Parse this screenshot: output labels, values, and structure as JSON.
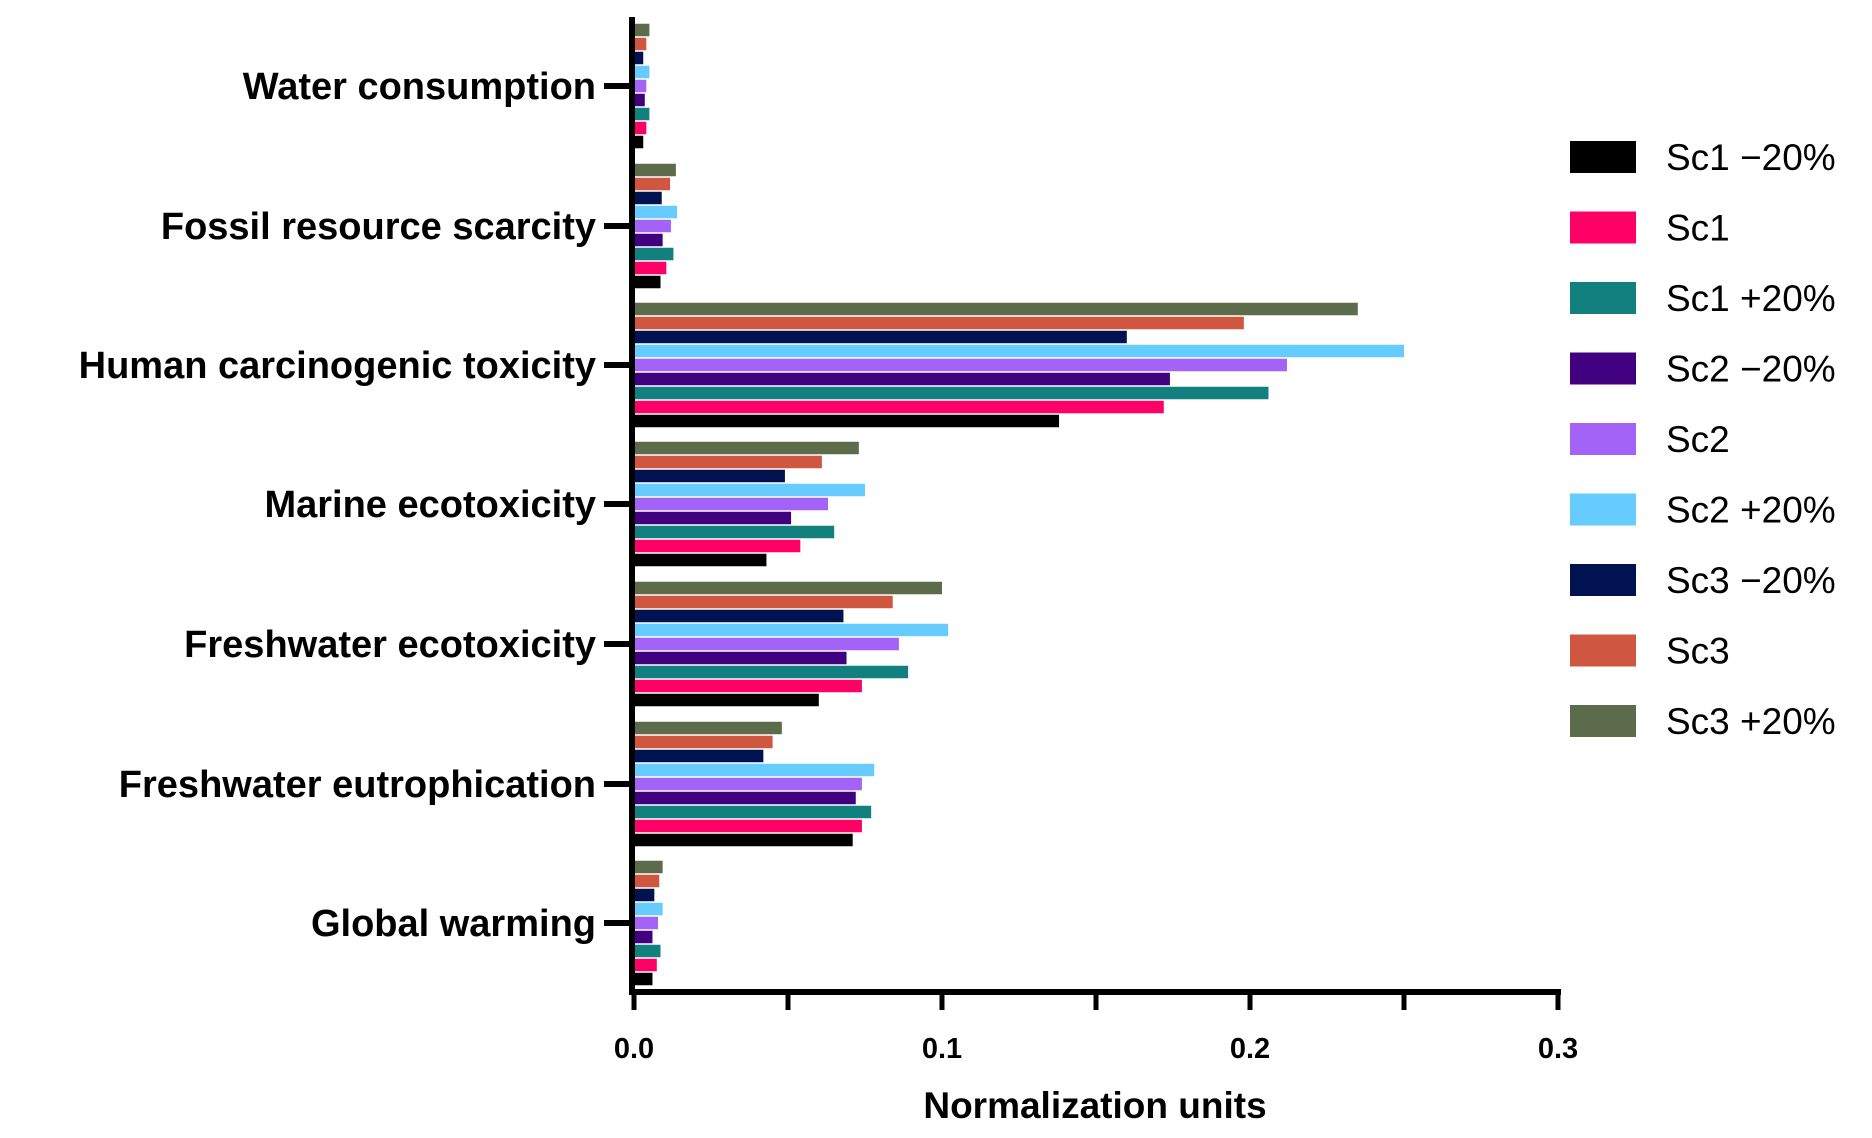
{
  "chart_data": {
    "type": "bar",
    "orientation": "horizontal",
    "title": "",
    "xlabel": "Normalization units",
    "ylabel": "",
    "xlim": [
      0,
      0.3
    ],
    "x_ticks": [
      "0.0",
      "0.1",
      "0.2",
      "0.3"
    ],
    "x_tick_values": [
      0,
      0.1,
      0.2,
      0.3
    ],
    "grid": false,
    "legend_position": "right",
    "categories": [
      "Water consumption",
      "Fossil resource scarcity",
      "Human carcinogenic toxicity",
      "Marine ecotoxicity",
      "Freshwater ecotoxicity",
      "Freshwater eutrophication",
      "Global warming"
    ],
    "series": [
      {
        "name": "Sc1 −20%",
        "color": "#000000",
        "values": [
          0.003,
          0.0086,
          0.138,
          0.043,
          0.06,
          0.071,
          0.006
        ]
      },
      {
        "name": "Sc1",
        "color": "#FF0066",
        "values": [
          0.004,
          0.0105,
          0.172,
          0.054,
          0.074,
          0.074,
          0.0074
        ]
      },
      {
        "name": "Sc1 +20%",
        "color": "#138080",
        "values": [
          0.005,
          0.0128,
          0.206,
          0.065,
          0.089,
          0.077,
          0.0086
        ]
      },
      {
        "name": "Sc2 −20%",
        "color": "#400080",
        "values": [
          0.0035,
          0.0093,
          0.174,
          0.051,
          0.069,
          0.072,
          0.006
        ]
      },
      {
        "name": "Sc2",
        "color": "#A463F7",
        "values": [
          0.004,
          0.012,
          0.212,
          0.063,
          0.086,
          0.074,
          0.0078
        ]
      },
      {
        "name": "Sc2 +20%",
        "color": "#66CCFF",
        "values": [
          0.005,
          0.014,
          0.25,
          0.075,
          0.102,
          0.078,
          0.0093
        ]
      },
      {
        "name": "Sc3 −20%",
        "color": "#00124F",
        "values": [
          0.003,
          0.009,
          0.16,
          0.049,
          0.068,
          0.042,
          0.0066
        ]
      },
      {
        "name": "Sc3",
        "color": "#D0573F",
        "values": [
          0.004,
          0.0117,
          0.198,
          0.061,
          0.084,
          0.045,
          0.0082
        ]
      },
      {
        "name": "Sc3 +20%",
        "color": "#5C6B4A",
        "values": [
          0.005,
          0.0136,
          0.235,
          0.073,
          0.1,
          0.048,
          0.0093
        ]
      }
    ]
  }
}
